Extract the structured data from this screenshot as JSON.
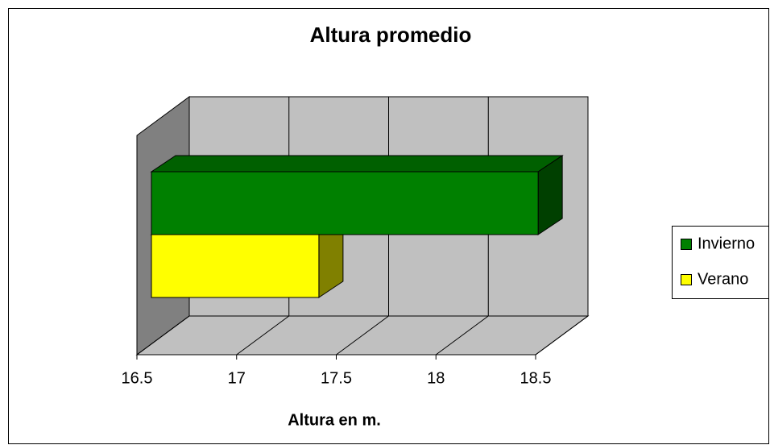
{
  "chart_data": {
    "type": "bar3d_horizontal",
    "title": "Altura promedio",
    "x_label": "Altura en m.",
    "categories": [
      null
    ],
    "series": [
      {
        "name": "Invierno",
        "color": "#008000",
        "values": [
          18.44
        ]
      },
      {
        "name": "Verano",
        "color": "#ffff00",
        "values": [
          17.34
        ]
      }
    ],
    "xlim": [
      16.5,
      18.5
    ],
    "xticks": [
      16.5,
      17,
      17.5,
      18,
      18.5
    ],
    "grid": true,
    "legend": "right"
  }
}
